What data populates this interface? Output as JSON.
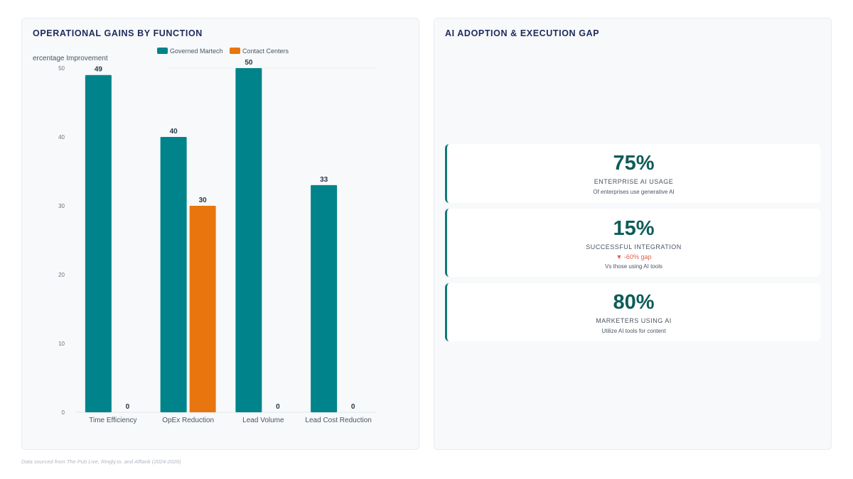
{
  "left_panel": {
    "title": "OPERATIONAL GAINS BY FUNCTION"
  },
  "right_panel": {
    "title": "AI ADOPTION & EXECUTION GAP"
  },
  "chart_data": {
    "type": "bar",
    "title": "OPERATIONAL GAINS BY FUNCTION",
    "ylabel": "ercentage Improvement",
    "xlabel": "",
    "ylim": [
      0,
      50
    ],
    "yticks": [
      0,
      10,
      20,
      30,
      40,
      50
    ],
    "grid": false,
    "legend_position": "top",
    "categories": [
      "Time Efficiency",
      "OpEx Reduction",
      "Lead Volume",
      "Lead Cost Reduction"
    ],
    "series": [
      {
        "name": "Governed Martech",
        "color": "#00838a",
        "values": [
          49,
          40,
          50,
          33
        ]
      },
      {
        "name": "Contact Centers",
        "color": "#e8750e",
        "values": [
          0,
          30,
          0,
          0
        ]
      }
    ]
  },
  "stats": [
    {
      "value": "75%",
      "label": "ENTERPRISE AI USAGE",
      "gap": "",
      "sub": "Of enterprises use generative AI"
    },
    {
      "value": "15%",
      "label": "SUCCESSFUL INTEGRATION",
      "gap": "▼ -60% gap",
      "sub": "Vs those using AI tools"
    },
    {
      "value": "80%",
      "label": "MARKETERS USING AI",
      "gap": "",
      "sub": "Utilize AI tools for content"
    }
  ],
  "footer": {
    "source": "Data sourced from The Pub Live, Ringly.io, and Alftank (2024-2026)"
  }
}
